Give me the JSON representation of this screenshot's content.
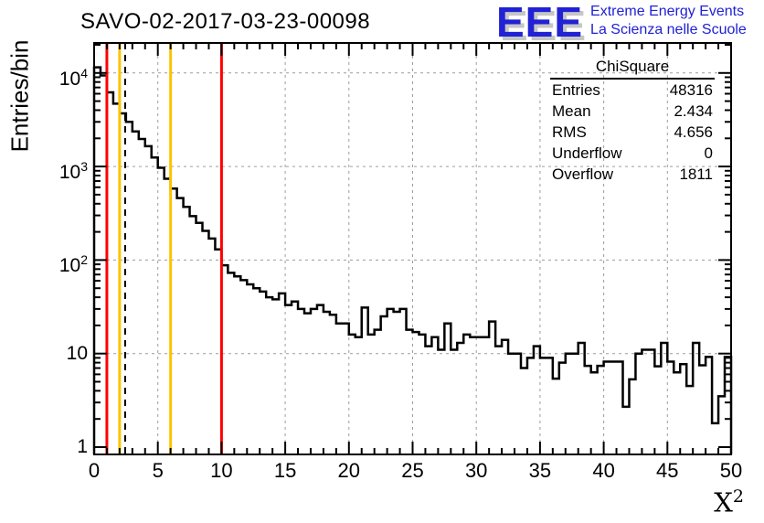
{
  "title": "SAVO-02-2017-03-23-00098",
  "logo": {
    "acronym": "EEE",
    "line1": "Extreme Energy Events",
    "line2": "La Scienza nelle Scuole",
    "color": "#2121d5"
  },
  "stats": {
    "box_title": "ChiSquare",
    "rows": [
      [
        "Entries",
        "48316"
      ],
      [
        "Mean",
        "2.434"
      ],
      [
        "RMS",
        "4.656"
      ],
      [
        "Underflow",
        "0"
      ],
      [
        "Overflow",
        "1811"
      ]
    ]
  },
  "y_axis": {
    "label": "Entries/bin",
    "ticks": [
      {
        "value": 1,
        "base": "1",
        "exp": ""
      },
      {
        "value": 10,
        "base": "10",
        "exp": ""
      },
      {
        "value": 100,
        "base": "10",
        "exp": "2"
      },
      {
        "value": 1000,
        "base": "10",
        "exp": "3"
      },
      {
        "value": 10000,
        "base": "10",
        "exp": "4"
      }
    ]
  },
  "x_axis": {
    "label": {
      "base": "X",
      "exp": "2"
    },
    "ticks": [
      "0",
      "5",
      "10",
      "15",
      "20",
      "25",
      "30",
      "35",
      "40",
      "45",
      "50"
    ],
    "tick_values": [
      0,
      5,
      10,
      15,
      20,
      25,
      30,
      35,
      40,
      45,
      50
    ]
  },
  "colors": {
    "histogram": "#000000",
    "grid": "#9c9c9c",
    "cut_red": "#ff0000",
    "cut_gold": "#fdc300",
    "mean_line": "#000000",
    "frame": "#000000"
  },
  "chart_data": {
    "type": "bar",
    "subtype": "step-histogram",
    "title": "SAVO-02-2017-03-23-00098",
    "xlabel": "X^2",
    "ylabel": "Entries/bin",
    "xlim": [
      0,
      50
    ],
    "ylim": [
      0.84,
      21500
    ],
    "yscale": "log",
    "bin_start": 0,
    "bin_width": 0.5,
    "values": [
      11500,
      9400,
      6200,
      4700,
      3700,
      3000,
      2370,
      1970,
      1650,
      1250,
      970,
      740,
      580,
      460,
      370,
      295,
      250,
      205,
      170,
      130,
      88,
      73,
      67,
      61,
      55,
      50,
      46,
      40,
      38,
      44,
      33,
      36,
      30,
      27,
      30,
      33,
      28,
      26,
      21,
      21,
      16,
      15,
      31,
      16,
      18,
      25,
      30,
      28,
      30,
      18,
      17,
      16,
      12,
      15,
      11,
      21,
      11,
      13,
      16,
      15,
      15,
      15,
      22,
      12,
      14,
      10,
      10,
      7,
      9,
      12,
      9,
      9,
      5.4,
      8,
      10,
      10,
      13,
      7.4,
      6.3,
      7.4,
      8.2,
      8.2,
      8.2,
      2.7,
      5.3,
      10,
      11,
      11,
      7.3,
      13,
      8.2,
      6.3,
      7.7,
      4.5,
      13,
      7.5,
      9.2,
      1.8,
      3.5,
      9.2
    ],
    "marker_lines": [
      {
        "x": 1,
        "color": "#ff0000",
        "style": "solid"
      },
      {
        "x": 2,
        "color": "#fdc300",
        "style": "solid"
      },
      {
        "x": 2.434,
        "color": "#000000",
        "style": "dashed"
      },
      {
        "x": 6,
        "color": "#fdc300",
        "style": "solid"
      },
      {
        "x": 10,
        "color": "#ff0000",
        "style": "solid"
      }
    ],
    "grid": {
      "x": [
        5,
        10,
        15,
        20,
        25,
        30,
        35,
        40,
        45
      ],
      "y": [
        10,
        100,
        1000,
        10000
      ],
      "style": "dashed"
    },
    "legend_position": "none",
    "stats_box": {
      "title": "ChiSquare",
      "entries": 48316,
      "mean": 2.434,
      "rms": 4.656,
      "underflow": 0,
      "overflow": 1811
    }
  }
}
